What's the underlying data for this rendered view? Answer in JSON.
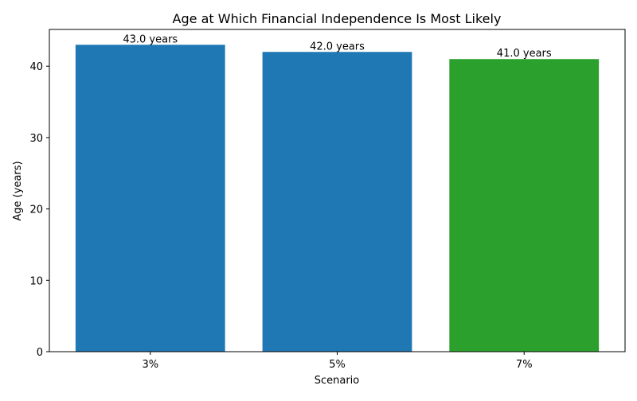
{
  "chart_data": {
    "type": "bar",
    "title": "Age at Which Financial Independence Is Most Likely",
    "xlabel": "Scenario",
    "ylabel": "Age (years)",
    "categories": [
      "3%",
      "5%",
      "7%"
    ],
    "values": [
      43.0,
      42.0,
      41.0
    ],
    "data_labels": [
      "43.0 years",
      "42.0 years",
      "41.0 years"
    ],
    "colors": [
      "#1f77b4",
      "#1f77b4",
      "#2ca02c"
    ],
    "ylim": [
      0,
      45.15
    ],
    "yticks": [
      0,
      10,
      20,
      30,
      40
    ],
    "grid": false,
    "legend": "none"
  }
}
